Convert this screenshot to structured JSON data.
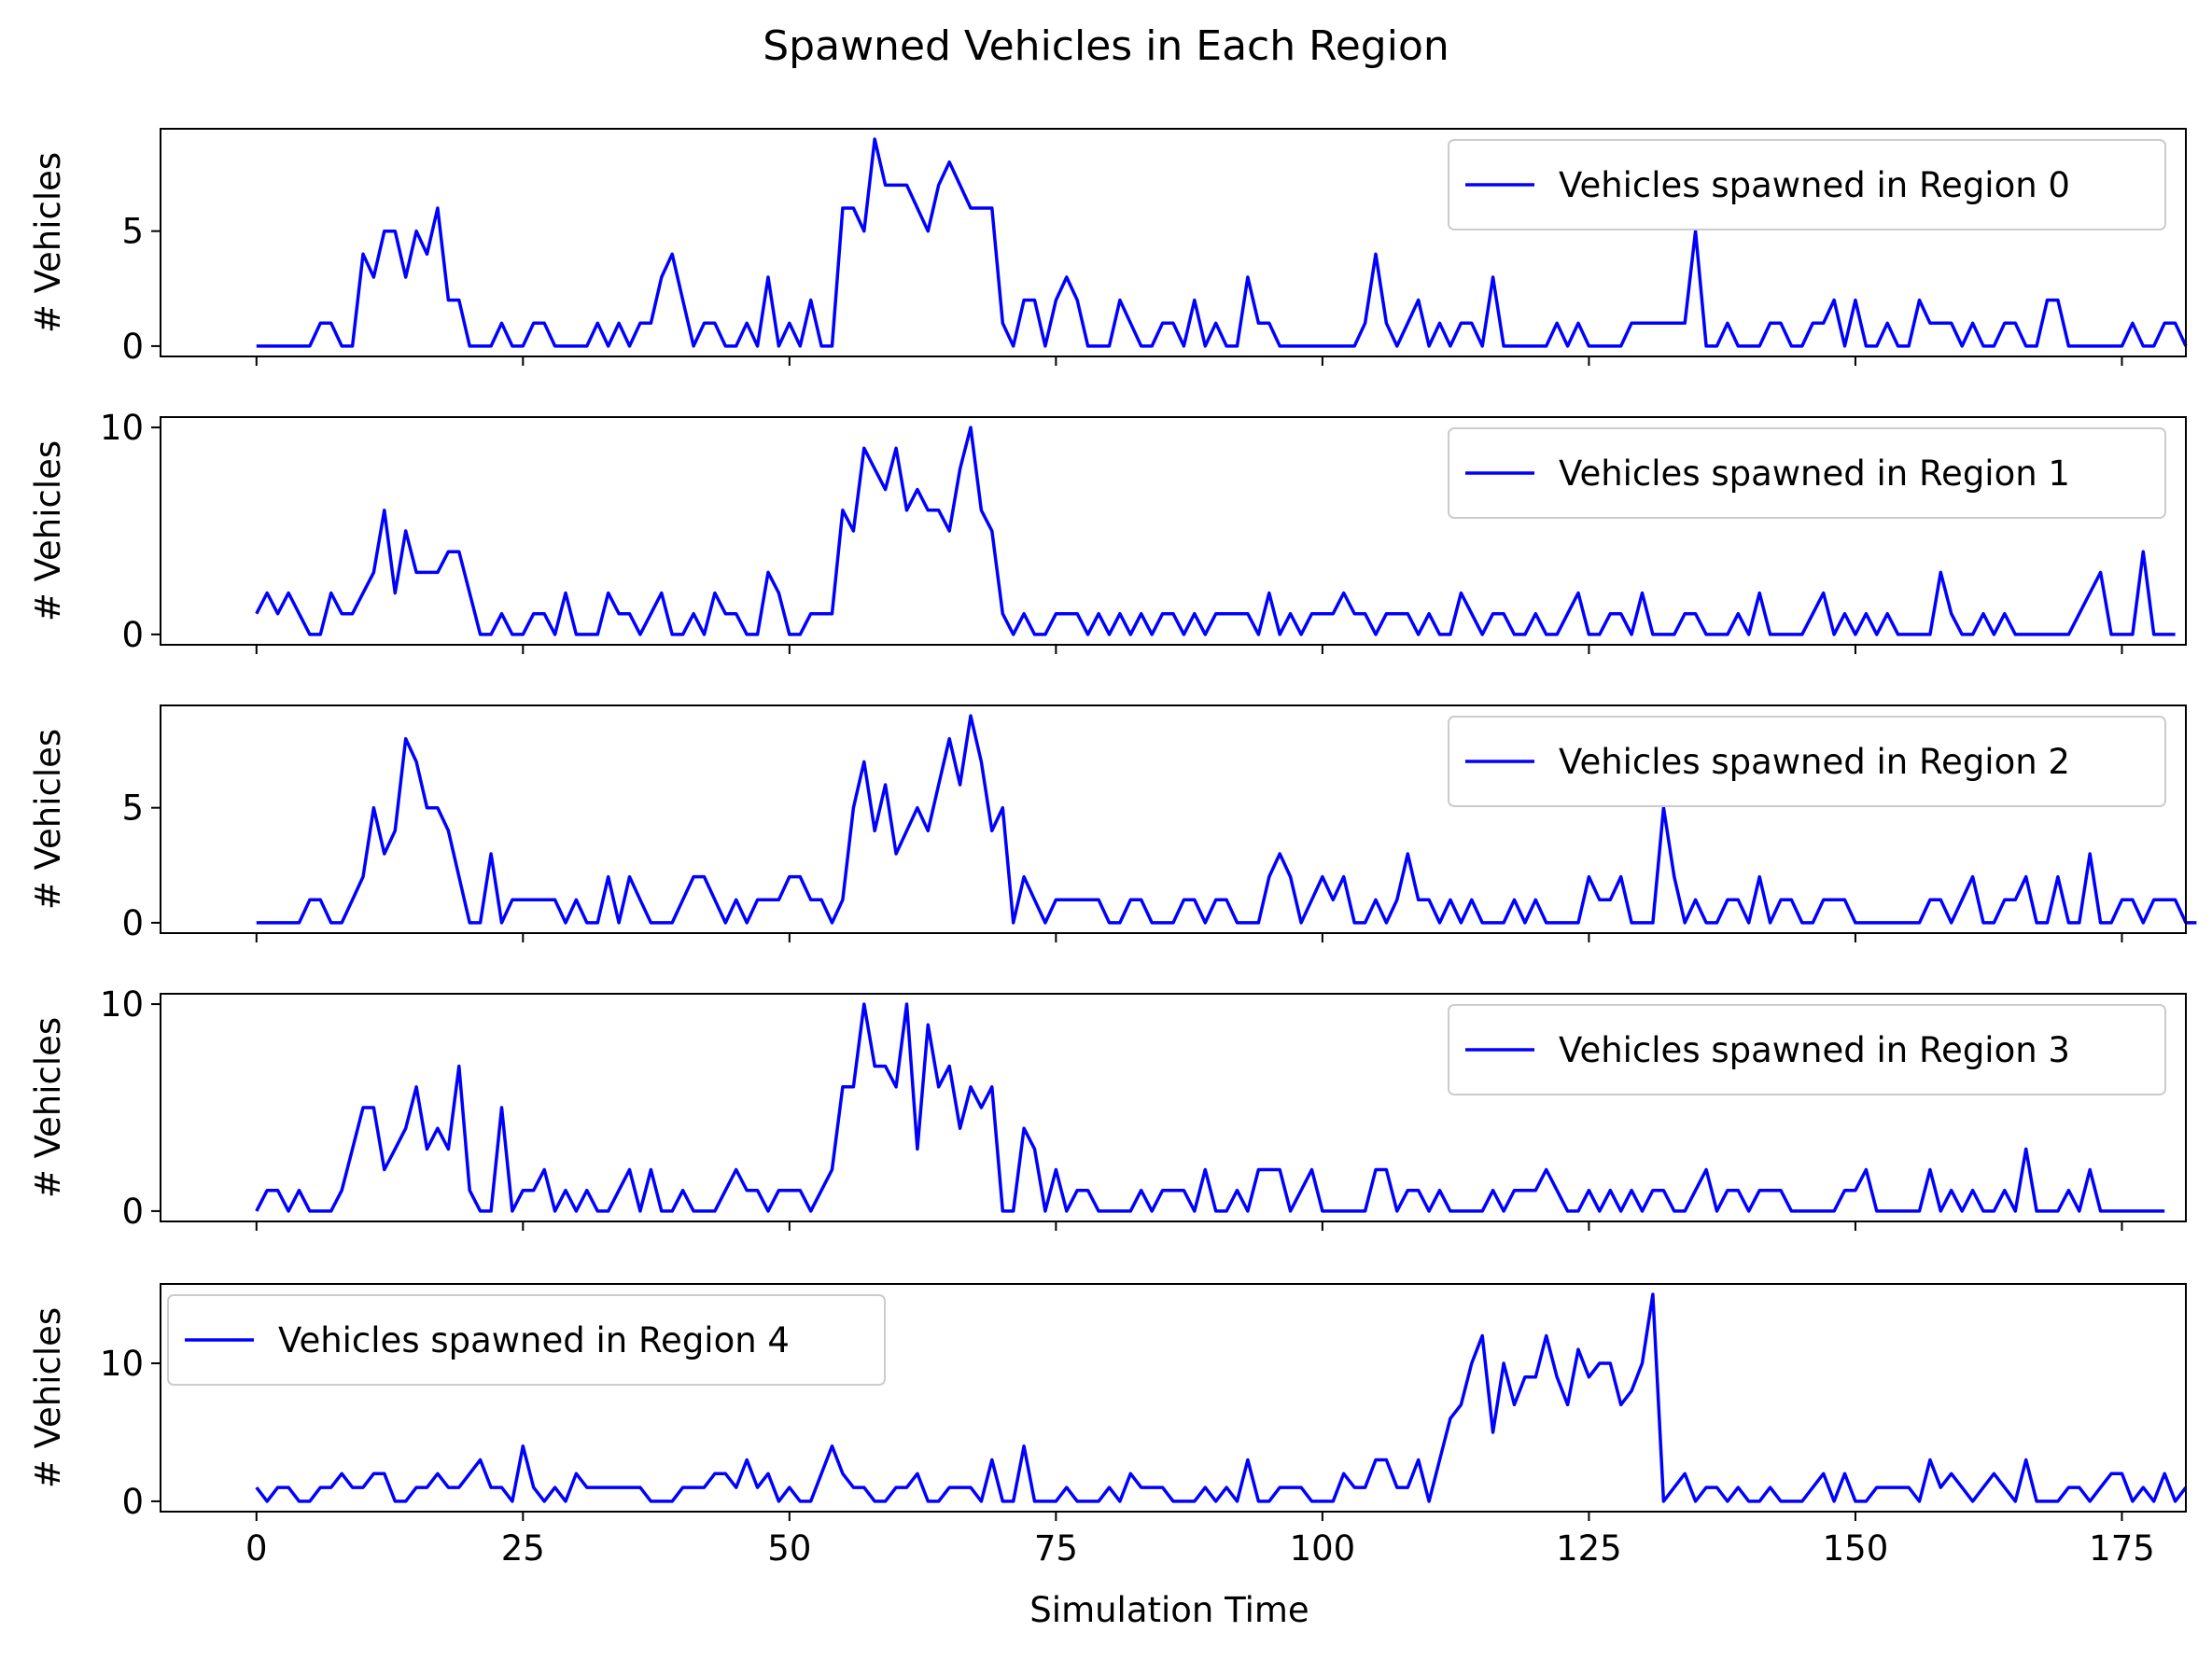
{
  "figure": {
    "title": "Spawned Vehicles in Each Region",
    "xlabel": "Simulation Time",
    "line_color": "#0000ff"
  },
  "chart_data": [
    {
      "type": "line",
      "ylabel": "# Vehicles",
      "legend": "top-right",
      "xlim": [
        -9,
        181
      ],
      "ylim": [
        -0.45,
        9.45
      ],
      "xticks": [
        0,
        25,
        50,
        75,
        100,
        125,
        150,
        175
      ],
      "yticks": [
        0,
        5
      ],
      "series": [
        {
          "name": "Vehicles spawned in Region 0",
          "values": [
            0,
            0,
            0,
            0,
            0,
            0,
            1,
            1,
            0,
            0,
            4,
            3,
            5,
            5,
            3,
            5,
            4,
            6,
            2,
            2,
            0,
            0,
            0,
            1,
            0,
            0,
            1,
            1,
            0,
            0,
            0,
            0,
            1,
            0,
            1,
            0,
            1,
            1,
            3,
            4,
            2,
            0,
            1,
            1,
            0,
            0,
            1,
            0,
            3,
            0,
            1,
            0,
            2,
            0,
            0,
            6,
            6,
            5,
            9,
            7,
            7,
            7,
            6,
            5,
            7,
            8,
            7,
            6,
            6,
            6,
            1,
            0,
            2,
            2,
            0,
            2,
            3,
            2,
            0,
            0,
            0,
            2,
            1,
            0,
            0,
            1,
            1,
            0,
            2,
            0,
            1,
            0,
            0,
            3,
            1,
            1,
            0,
            0,
            0,
            0,
            0,
            0,
            0,
            0,
            1,
            4,
            1,
            0,
            1,
            2,
            0,
            1,
            0,
            1,
            1,
            0,
            3,
            0,
            0,
            0,
            0,
            0,
            1,
            0,
            1,
            0,
            0,
            0,
            0,
            1,
            1,
            1,
            1,
            1,
            1,
            5,
            0,
            0,
            1,
            0,
            0,
            0,
            1,
            1,
            0,
            0,
            1,
            1,
            2,
            0,
            2,
            0,
            0,
            1,
            0,
            0,
            2,
            1,
            1,
            1,
            0,
            1,
            0,
            0,
            1,
            1,
            0,
            0,
            2,
            2,
            0,
            0,
            0,
            0,
            0,
            0,
            1,
            0,
            0,
            1,
            1,
            0
          ]
        }
      ]
    },
    {
      "type": "line",
      "ylabel": "# Vehicles",
      "legend": "top-right",
      "xlim": [
        -9,
        181
      ],
      "ylim": [
        -0.5,
        10.5
      ],
      "xticks": [
        0,
        25,
        50,
        75,
        100,
        125,
        150,
        175
      ],
      "yticks": [
        0,
        10
      ],
      "series": [
        {
          "name": "Vehicles spawned in Region 1",
          "values": [
            1,
            2,
            1,
            2,
            1,
            0,
            0,
            2,
            1,
            1,
            2,
            3,
            6,
            2,
            5,
            3,
            3,
            3,
            4,
            4,
            2,
            0,
            0,
            1,
            0,
            0,
            1,
            1,
            0,
            2,
            0,
            0,
            0,
            2,
            1,
            1,
            0,
            1,
            2,
            0,
            0,
            1,
            0,
            2,
            1,
            1,
            0,
            0,
            3,
            2,
            0,
            0,
            1,
            1,
            1,
            6,
            5,
            9,
            8,
            7,
            9,
            6,
            7,
            6,
            6,
            5,
            8,
            10,
            6,
            5,
            1,
            0,
            1,
            0,
            0,
            1,
            1,
            1,
            0,
            1,
            0,
            1,
            0,
            1,
            0,
            1,
            1,
            0,
            1,
            0,
            1,
            1,
            1,
            1,
            0,
            2,
            0,
            1,
            0,
            1,
            1,
            1,
            2,
            1,
            1,
            0,
            1,
            1,
            1,
            0,
            1,
            0,
            0,
            2,
            1,
            0,
            1,
            1,
            0,
            0,
            1,
            0,
            0,
            1,
            2,
            0,
            0,
            1,
            1,
            0,
            2,
            0,
            0,
            0,
            1,
            1,
            0,
            0,
            0,
            1,
            0,
            2,
            0,
            0,
            0,
            0,
            1,
            2,
            0,
            1,
            0,
            1,
            0,
            1,
            0,
            0,
            0,
            0,
            3,
            1,
            0,
            0,
            1,
            0,
            1,
            0,
            0,
            0,
            0,
            0,
            0,
            1,
            2,
            3,
            0,
            0,
            0,
            4,
            0,
            0,
            0
          ]
        }
      ]
    },
    {
      "type": "line",
      "ylabel": "# Vehicles",
      "legend": "top-right",
      "xlim": [
        -9,
        181
      ],
      "ylim": [
        -0.45,
        9.45
      ],
      "xticks": [
        0,
        25,
        50,
        75,
        100,
        125,
        150,
        175
      ],
      "yticks": [
        0,
        5
      ],
      "series": [
        {
          "name": "Vehicles spawned in Region 2",
          "values": [
            0,
            0,
            0,
            0,
            0,
            1,
            1,
            0,
            0,
            1,
            2,
            5,
            3,
            4,
            8,
            7,
            5,
            5,
            4,
            2,
            0,
            0,
            3,
            0,
            1,
            1,
            1,
            1,
            1,
            0,
            1,
            0,
            0,
            2,
            0,
            2,
            1,
            0,
            0,
            0,
            1,
            2,
            2,
            1,
            0,
            1,
            0,
            1,
            1,
            1,
            2,
            2,
            1,
            1,
            0,
            1,
            5,
            7,
            4,
            6,
            3,
            4,
            5,
            4,
            6,
            8,
            6,
            9,
            7,
            4,
            5,
            0,
            2,
            1,
            0,
            1,
            1,
            1,
            1,
            1,
            0,
            0,
            1,
            1,
            0,
            0,
            0,
            1,
            1,
            0,
            1,
            1,
            0,
            0,
            0,
            2,
            3,
            2,
            0,
            1,
            2,
            1,
            2,
            0,
            0,
            1,
            0,
            1,
            3,
            1,
            1,
            0,
            1,
            0,
            1,
            0,
            0,
            0,
            1,
            0,
            1,
            0,
            0,
            0,
            0,
            2,
            1,
            1,
            2,
            0,
            0,
            0,
            5,
            2,
            0,
            1,
            0,
            0,
            1,
            1,
            0,
            2,
            0,
            1,
            1,
            0,
            0,
            1,
            1,
            1,
            0,
            0,
            0,
            0,
            0,
            0,
            0,
            1,
            1,
            0,
            1,
            2,
            0,
            0,
            1,
            1,
            2,
            0,
            0,
            2,
            0,
            0,
            3,
            0,
            0,
            1,
            1,
            0,
            1,
            1,
            1,
            0,
            0
          ]
        }
      ]
    },
    {
      "type": "line",
      "ylabel": "# Vehicles",
      "legend": "top-right",
      "xlim": [
        -9,
        181
      ],
      "ylim": [
        -0.5,
        10.5
      ],
      "xticks": [
        0,
        25,
        50,
        75,
        100,
        125,
        150,
        175
      ],
      "yticks": [
        0,
        10
      ],
      "series": [
        {
          "name": "Vehicles spawned in Region 3",
          "values": [
            0,
            1,
            1,
            0,
            1,
            0,
            0,
            0,
            1,
            3,
            5,
            5,
            2,
            3,
            4,
            6,
            3,
            4,
            3,
            7,
            1,
            0,
            0,
            5,
            0,
            1,
            1,
            2,
            0,
            1,
            0,
            1,
            0,
            0,
            1,
            2,
            0,
            2,
            0,
            0,
            1,
            0,
            0,
            0,
            1,
            2,
            1,
            1,
            0,
            1,
            1,
            1,
            0,
            1,
            2,
            6,
            6,
            10,
            7,
            7,
            6,
            10,
            3,
            9,
            6,
            7,
            4,
            6,
            5,
            6,
            0,
            0,
            4,
            3,
            0,
            2,
            0,
            1,
            1,
            0,
            0,
            0,
            0,
            1,
            0,
            1,
            1,
            1,
            0,
            2,
            0,
            0,
            1,
            0,
            2,
            2,
            2,
            0,
            1,
            2,
            0,
            0,
            0,
            0,
            0,
            2,
            2,
            0,
            1,
            1,
            0,
            1,
            0,
            0,
            0,
            0,
            1,
            0,
            1,
            1,
            1,
            2,
            1,
            0,
            0,
            1,
            0,
            1,
            0,
            1,
            0,
            1,
            1,
            0,
            0,
            1,
            2,
            0,
            1,
            1,
            0,
            1,
            1,
            1,
            0,
            0,
            0,
            0,
            0,
            1,
            1,
            2,
            0,
            0,
            0,
            0,
            0,
            2,
            0,
            1,
            0,
            1,
            0,
            0,
            1,
            0,
            3,
            0,
            0,
            0,
            1,
            0,
            2,
            0,
            0,
            0,
            0,
            0,
            0,
            0
          ]
        }
      ]
    },
    {
      "type": "line",
      "ylabel": "# Vehicles",
      "legend": "top-left",
      "xlim": [
        -9,
        181
      ],
      "ylim": [
        -0.75,
        15.75
      ],
      "xticks": [
        0,
        25,
        50,
        75,
        100,
        125,
        150,
        175
      ],
      "yticks": [
        0,
        10
      ],
      "series": [
        {
          "name": "Vehicles spawned in Region 4",
          "values": [
            1,
            0,
            1,
            1,
            0,
            0,
            1,
            1,
            2,
            1,
            1,
            2,
            2,
            0,
            0,
            1,
            1,
            2,
            1,
            1,
            2,
            3,
            1,
            1,
            0,
            4,
            1,
            0,
            1,
            0,
            2,
            1,
            1,
            1,
            1,
            1,
            1,
            0,
            0,
            0,
            1,
            1,
            1,
            2,
            2,
            1,
            3,
            1,
            2,
            0,
            1,
            0,
            0,
            2,
            4,
            2,
            1,
            1,
            0,
            0,
            1,
            1,
            2,
            0,
            0,
            1,
            1,
            1,
            0,
            3,
            0,
            0,
            4,
            0,
            0,
            0,
            1,
            0,
            0,
            0,
            1,
            0,
            2,
            1,
            1,
            1,
            0,
            0,
            0,
            1,
            0,
            1,
            0,
            3,
            0,
            0,
            1,
            1,
            1,
            0,
            0,
            0,
            2,
            1,
            1,
            3,
            3,
            1,
            1,
            3,
            0,
            3,
            6,
            7,
            10,
            12,
            5,
            10,
            7,
            9,
            9,
            12,
            9,
            7,
            11,
            9,
            10,
            10,
            7,
            8,
            10,
            15,
            0,
            1,
            2,
            0,
            1,
            1,
            0,
            1,
            0,
            0,
            1,
            0,
            0,
            0,
            1,
            2,
            0,
            2,
            0,
            0,
            1,
            1,
            1,
            1,
            0,
            3,
            1,
            2,
            1,
            0,
            1,
            2,
            1,
            0,
            3,
            0,
            0,
            0,
            1,
            1,
            0,
            1,
            2,
            2,
            0,
            1,
            0,
            2,
            0,
            1
          ]
        }
      ]
    }
  ]
}
